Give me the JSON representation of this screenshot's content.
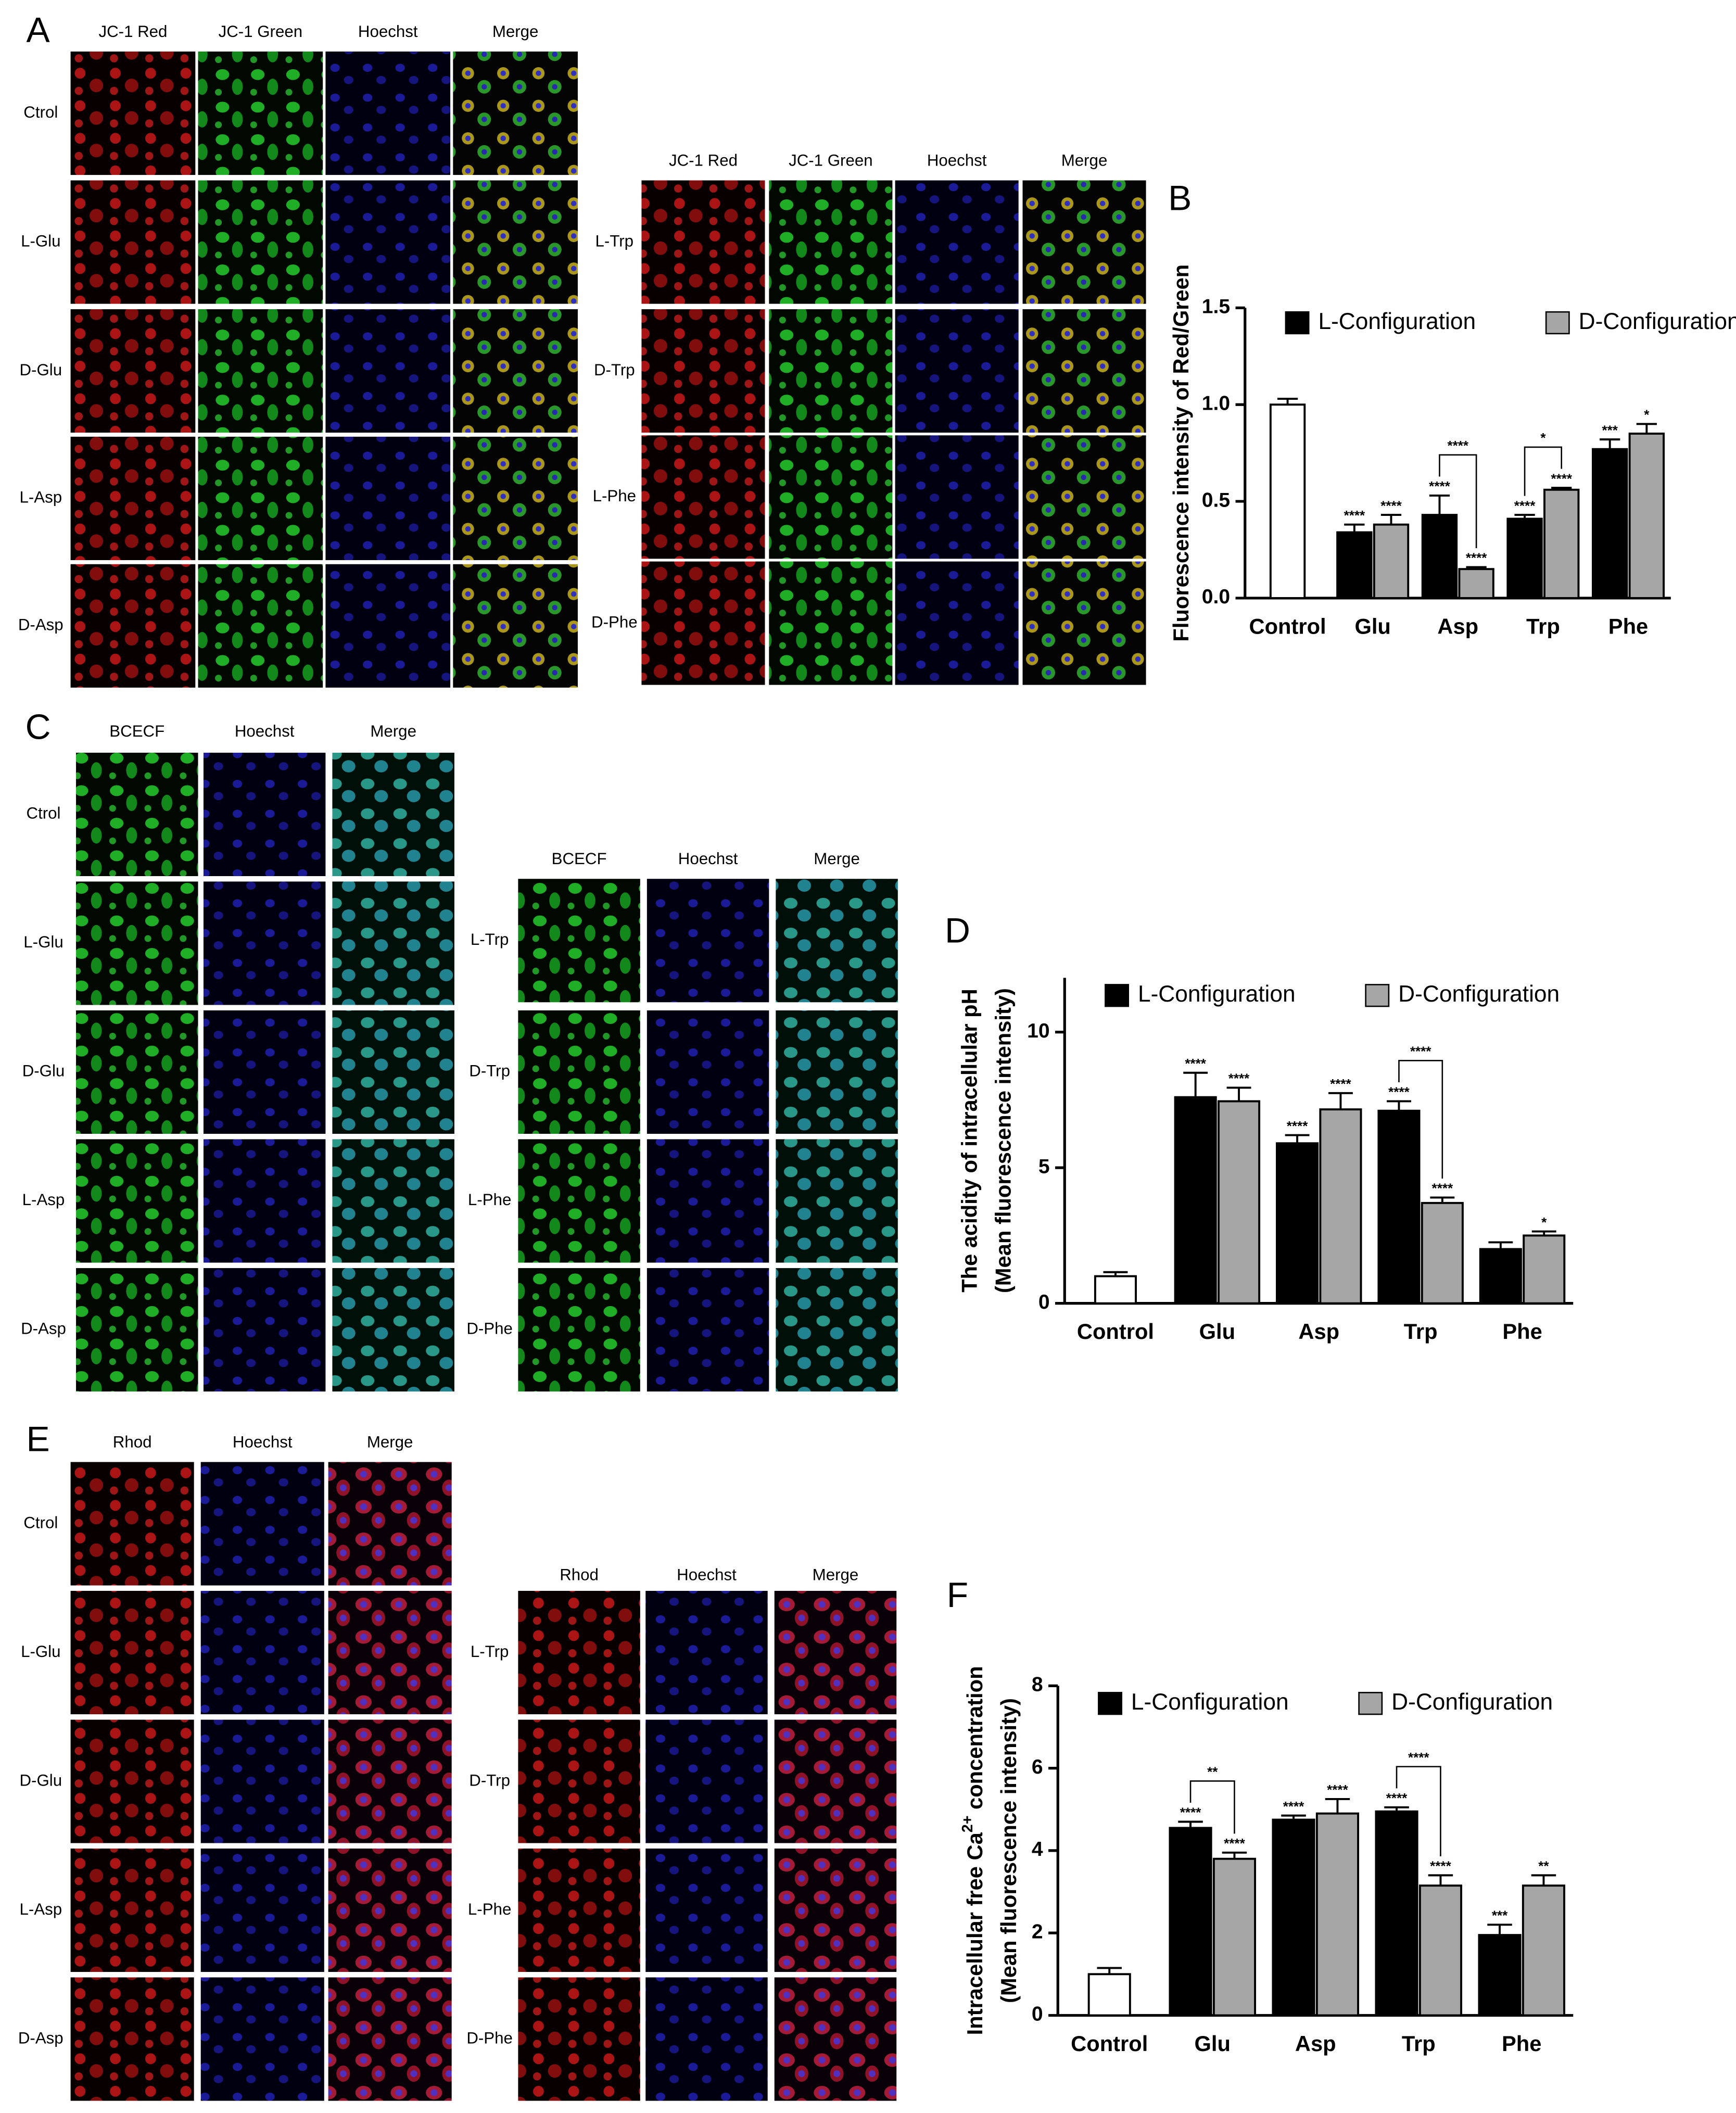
{
  "panels": [
    {
      "label": "A",
      "groups": [
        {
          "columns": [
            "JC-1 Red",
            "JC-1 Green",
            "Hoechst",
            "Merge"
          ],
          "rows": [
            "Ctrol",
            "L-Glu",
            "D-Glu",
            "L-Asp",
            "D-Asp"
          ]
        },
        {
          "columns": [
            "JC-1 Red",
            "JC-1 Green",
            "Hoechst",
            "Merge"
          ],
          "rows": [
            "L-Trp",
            "D-Trp",
            "L-Phe",
            "D-Phe"
          ]
        }
      ]
    },
    {
      "label": "C",
      "groups": [
        {
          "columns": [
            "BCECF",
            "Hoechst",
            "Merge"
          ],
          "rows": [
            "Ctrol",
            "L-Glu",
            "D-Glu",
            "L-Asp",
            "D-Asp"
          ]
        },
        {
          "columns": [
            "BCECF",
            "Hoechst",
            "Merge"
          ],
          "rows": [
            "L-Trp",
            "D-Trp",
            "L-Phe",
            "D-Phe"
          ]
        }
      ]
    },
    {
      "label": "E",
      "groups": [
        {
          "columns": [
            "Rhod",
            "Hoechst",
            "Merge"
          ],
          "rows": [
            "Ctrol",
            "L-Glu",
            "D-Glu",
            "L-Asp",
            "D-Asp"
          ]
        },
        {
          "columns": [
            "Rhod",
            "Hoechst",
            "Merge"
          ],
          "rows": [
            "L-Trp",
            "D-Trp",
            "L-Phe",
            "D-Phe"
          ]
        }
      ]
    }
  ],
  "chart_data": [
    {
      "type": "bar",
      "label": "B",
      "ylabel": [
        {
          "text": "Fluorescence intensity of Red/Green"
        }
      ],
      "control": {
        "name": "Control",
        "value": 1.0,
        "error": 0.03,
        "color": "#ffffff"
      },
      "categories": [
        "Glu",
        "Asp",
        "Trp",
        "Phe"
      ],
      "series": [
        {
          "name": "L-Configuration",
          "color": "#000000",
          "values": [
            0.34,
            0.43,
            0.41,
            0.77
          ],
          "errors": [
            0.04,
            0.1,
            0.02,
            0.05
          ],
          "annotations": [
            "****",
            "****",
            "****",
            "***"
          ]
        },
        {
          "name": "D-Configuration",
          "color": "#a6a6a6",
          "values": [
            0.38,
            0.15,
            0.56,
            0.85
          ],
          "errors": [
            0.05,
            0.01,
            0.01,
            0.05
          ],
          "annotations": [
            "****",
            "****",
            "****",
            "*"
          ]
        }
      ],
      "brackets": [
        {
          "category": "Asp",
          "label": "****"
        },
        {
          "category": "Trp",
          "label": "*"
        }
      ],
      "ylim": [
        0,
        1.5
      ],
      "yticks": [
        {
          "value": 0,
          "label": "0.0"
        },
        {
          "value": 0.5,
          "label": "0.5"
        },
        {
          "value": 1,
          "label": "1.0"
        },
        {
          "value": 1.5,
          "label": "1.5"
        }
      ],
      "legend": "top"
    },
    {
      "type": "bar",
      "label": "D",
      "ylabel": [
        {
          "text": "The acidity of intracellular pH"
        },
        {
          "text": "(Mean fluorescence intensity)"
        }
      ],
      "control": {
        "name": "Control",
        "value": 1.0,
        "error": 0.15,
        "color": "#ffffff"
      },
      "categories": [
        "Glu",
        "Asp",
        "Trp",
        "Phe"
      ],
      "series": [
        {
          "name": "L-Configuration",
          "color": "#000000",
          "values": [
            7.6,
            5.9,
            7.1,
            2.0
          ],
          "errors": [
            0.9,
            0.3,
            0.35,
            0.25
          ],
          "annotations": [
            "****",
            "****",
            "****",
            null
          ]
        },
        {
          "name": "D-Configuration",
          "color": "#a6a6a6",
          "values": [
            7.45,
            7.15,
            3.7,
            2.5
          ],
          "errors": [
            0.5,
            0.6,
            0.2,
            0.15
          ],
          "annotations": [
            "****",
            "****",
            "****",
            "*"
          ]
        }
      ],
      "brackets": [
        {
          "category": "Trp",
          "label": "****"
        }
      ],
      "ylim": [
        0,
        12
      ],
      "yticks": [
        0,
        5,
        10
      ],
      "legend": "top"
    },
    {
      "type": "bar",
      "label": "F",
      "ylabel": [
        {
          "text": "Intracellular free Ca",
          "superscript": "2+",
          "text_after": " concentration"
        },
        {
          "text": "(Mean fluorescence intensity)"
        }
      ],
      "control": {
        "name": "Control",
        "value": 1.0,
        "error": 0.15,
        "color": "#ffffff"
      },
      "categories": [
        "Glu",
        "Asp",
        "Trp",
        "Phe"
      ],
      "series": [
        {
          "name": "L-Configuration",
          "color": "#000000",
          "values": [
            4.55,
            4.75,
            4.95,
            1.95
          ],
          "errors": [
            0.15,
            0.1,
            0.1,
            0.25
          ],
          "annotations": [
            "****",
            "****",
            "****",
            "***"
          ]
        },
        {
          "name": "D-Configuration",
          "color": "#a6a6a6",
          "values": [
            3.8,
            4.9,
            3.15,
            3.15
          ],
          "errors": [
            0.15,
            0.35,
            0.25,
            0.25
          ],
          "annotations": [
            "****",
            "****",
            "****",
            "**"
          ]
        }
      ],
      "brackets": [
        {
          "category": "Glu",
          "label": "**"
        },
        {
          "category": "Trp",
          "label": "****"
        }
      ],
      "ylim": [
        0,
        8
      ],
      "yticks": [
        0,
        2,
        4,
        6,
        8
      ],
      "legend": "top"
    }
  ]
}
